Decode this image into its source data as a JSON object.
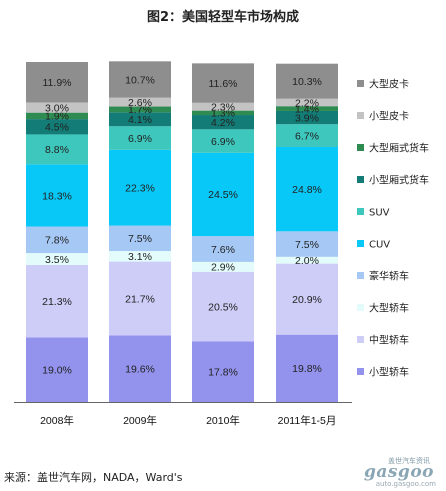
{
  "title": "图2：美国轻型车市场构成",
  "source": "来源：盖世汽车网，NADA，Ward's",
  "watermark": {
    "cn": "盖世汽车资讯",
    "logo": "gasgoo",
    "url": "auto.gasgoo.com"
  },
  "chart_data": {
    "type": "bar",
    "stacked": true,
    "percent_stacked": true,
    "categories": [
      "2008年",
      "2009年",
      "2010年",
      "2011年1-5月"
    ],
    "ylim": [
      0,
      100
    ],
    "legend_position": "right",
    "series": [
      {
        "name": "小型轿车",
        "color": "#9393ee",
        "label_color": "#222222",
        "values": [
          19.0,
          19.6,
          17.8,
          19.8
        ],
        "labels": [
          "19.0%",
          "19.6%",
          "17.8%",
          "19.8%"
        ]
      },
      {
        "name": "中型轿车",
        "color": "#cdcdf7",
        "label_color": "#222222",
        "values": [
          21.3,
          21.7,
          20.5,
          20.9
        ],
        "labels": [
          "21.3%",
          "21.7%",
          "20.5%",
          "20.9%"
        ]
      },
      {
        "name": "大型轿车",
        "color": "#e3fcfb",
        "label_color": "#222222",
        "values": [
          3.5,
          3.1,
          2.9,
          2.0
        ],
        "labels": [
          "3.5%",
          "3.1%",
          "2.9%",
          "2.0%"
        ]
      },
      {
        "name": "豪华轿车",
        "color": "#a6c8f5",
        "label_color": "#222222",
        "values": [
          7.8,
          7.5,
          7.6,
          7.5
        ],
        "labels": [
          "7.8%",
          "7.5%",
          "7.6%",
          "7.5%"
        ]
      },
      {
        "name": "CUV",
        "color": "#08c8f7",
        "label_color": "#222222",
        "values": [
          18.3,
          22.3,
          24.5,
          24.8
        ],
        "labels": [
          "18.3%",
          "22.3%",
          "24.5%",
          "24.8%"
        ]
      },
      {
        "name": "SUV",
        "color": "#3ec7bd",
        "label_color": "#222222",
        "values": [
          8.8,
          6.9,
          6.9,
          6.7
        ],
        "labels": [
          "8.8%",
          "6.9%",
          "6.9%",
          "6.7%"
        ]
      },
      {
        "name": "小型厢式货车",
        "color": "#137c76",
        "label_color": "#222222",
        "values": [
          4.5,
          4.1,
          4.2,
          3.9
        ],
        "labels": [
          "4.5%",
          "4.1%",
          "4.2%",
          "3.9%"
        ]
      },
      {
        "name": "大型厢式货车",
        "color": "#2e8c52",
        "label_color": "#222222",
        "values": [
          1.9,
          1.7,
          1.3,
          1.4
        ],
        "labels": [
          "1.9%",
          "1.7%",
          "1.3%",
          "1.4%"
        ]
      },
      {
        "name": "小型皮卡",
        "color": "#c3c3c3",
        "label_color": "#222222",
        "values": [
          3.0,
          2.6,
          2.3,
          2.2
        ],
        "labels": [
          "3.0%",
          "2.6%",
          "2.3%",
          "2.2%"
        ]
      },
      {
        "name": "大型皮卡",
        "color": "#8e8e8e",
        "label_color": "#222222",
        "values": [
          11.9,
          10.7,
          11.6,
          10.3
        ],
        "labels": [
          "11.9%",
          "10.7%",
          "11.6%",
          "10.3%"
        ]
      }
    ]
  }
}
